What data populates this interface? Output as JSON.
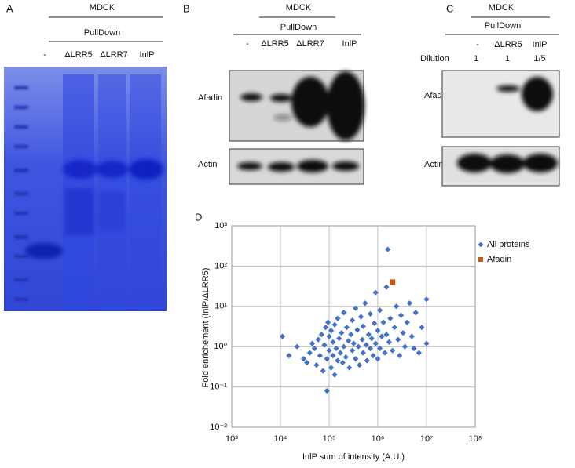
{
  "panel_a": {
    "label": "A",
    "group": "MDCK",
    "subgroup": "PullDown",
    "lanes": [
      "-",
      "ΔLRR5",
      "ΔLRR7",
      "InlP"
    ]
  },
  "panel_b": {
    "label": "B",
    "group": "MDCK",
    "subgroup": "PullDown",
    "lanes": [
      "-",
      "ΔLRR5",
      "ΔLRR7",
      "InlP"
    ],
    "blots": [
      "Afadin",
      "Actin"
    ]
  },
  "panel_c": {
    "label": "C",
    "group": "MDCK",
    "subgroup": "PullDown",
    "lanes": [
      "-",
      "ΔLRR5",
      "InlP"
    ],
    "dilution_label": "Dilution",
    "dilutions": [
      "1",
      "1",
      "1/5"
    ],
    "blots": [
      "Afadin",
      "Actin"
    ]
  },
  "chart_data": {
    "type": "scatter",
    "panel_label": "D",
    "x_label": "InlP sum of intensity (A.U.)",
    "y_label": "Fold enrichement (InlP/ΔLRR5)",
    "xscale": "log",
    "yscale": "log",
    "xlim": [
      1000,
      100000000
    ],
    "ylim": [
      0.01,
      1000
    ],
    "xticks": [
      {
        "value": 1000,
        "label": "10³"
      },
      {
        "value": 10000,
        "label": "10⁴"
      },
      {
        "value": 100000,
        "label": "10⁵"
      },
      {
        "value": 1000000,
        "label": "10⁶"
      },
      {
        "value": 10000000,
        "label": "10⁷"
      },
      {
        "value": 100000000,
        "label": "10⁸"
      }
    ],
    "yticks": [
      {
        "value": 0.01,
        "label": "10⁻²"
      },
      {
        "value": 0.1,
        "label": "10⁻¹"
      },
      {
        "value": 1,
        "label": "10⁰"
      },
      {
        "value": 10,
        "label": "10¹"
      },
      {
        "value": 100,
        "label": "10²"
      },
      {
        "value": 1000,
        "label": "10³"
      }
    ],
    "grid": true,
    "legend": "right",
    "series": [
      {
        "name": "All proteins",
        "color": "#4472c4",
        "marker": "diamond",
        "x": [
          11000,
          15000,
          22000,
          30000,
          35000,
          40000,
          45000,
          50000,
          55000,
          60000,
          65000,
          70000,
          75000,
          80000,
          85000,
          90000,
          90000,
          95000,
          100000,
          100000,
          110000,
          110000,
          120000,
          120000,
          130000,
          130000,
          140000,
          150000,
          150000,
          160000,
          170000,
          180000,
          190000,
          200000,
          200000,
          220000,
          230000,
          250000,
          260000,
          280000,
          300000,
          300000,
          320000,
          350000,
          350000,
          380000,
          400000,
          420000,
          450000,
          480000,
          500000,
          500000,
          550000,
          580000,
          600000,
          650000,
          700000,
          700000,
          750000,
          800000,
          850000,
          900000,
          900000,
          1000000,
          1000000,
          1100000,
          1100000,
          1200000,
          1300000,
          1400000,
          1500000,
          1500000,
          1600000,
          1700000,
          1800000,
          2000000,
          2200000,
          2400000,
          2600000,
          2800000,
          3000000,
          3300000,
          3600000,
          4000000,
          4500000,
          5000000,
          5500000,
          6000000,
          7000000,
          8000000,
          10000000,
          10000000
        ],
        "values": [
          1.8,
          0.6,
          1.0,
          0.5,
          0.4,
          0.7,
          1.2,
          0.9,
          0.35,
          1.5,
          0.6,
          2.0,
          0.25,
          1.1,
          3.0,
          0.08,
          0.5,
          4.0,
          0.8,
          1.8,
          0.3,
          2.5,
          0.6,
          1.3,
          0.2,
          3.5,
          0.9,
          5.0,
          0.45,
          1.6,
          0.7,
          2.2,
          0.4,
          1.0,
          7.0,
          0.55,
          3.0,
          1.4,
          0.3,
          2.0,
          0.8,
          4.5,
          1.2,
          0.5,
          9.0,
          2.6,
          1.0,
          0.35,
          5.5,
          1.5,
          0.7,
          3.2,
          12,
          1.1,
          0.45,
          2.0,
          6.5,
          0.9,
          1.6,
          0.6,
          3.8,
          22,
          1.2,
          0.5,
          2.5,
          8.0,
          0.9,
          1.8,
          4.0,
          0.7,
          30,
          2.0,
          260,
          1.3,
          5.0,
          0.8,
          3.0,
          10,
          1.5,
          0.6,
          6.0,
          2.2,
          1.0,
          4.0,
          12,
          1.8,
          0.9,
          7.0,
          0.7,
          3.0,
          15,
          1.2
        ]
      },
      {
        "name": "Afadin",
        "color": "#c55a11",
        "marker": "square",
        "x": [
          2000000
        ],
        "values": [
          40
        ]
      }
    ]
  }
}
